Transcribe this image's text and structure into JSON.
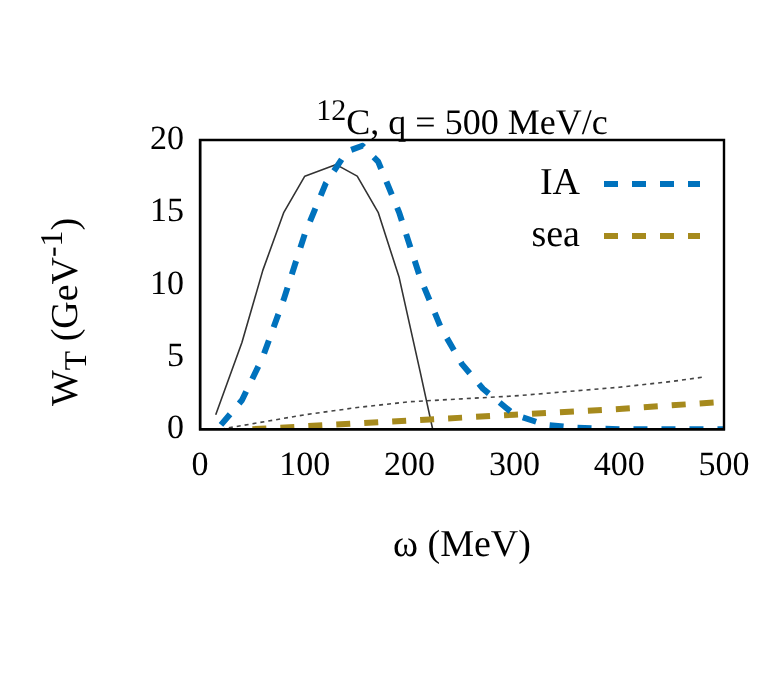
{
  "chart_data": {
    "type": "line",
    "title": "$^{12}$C, q = 500 MeV/c",
    "xlabel": "ω (MeV)",
    "ylabel": "W$_{T}$ (GeV$^{-1}$)",
    "xlim": [
      0,
      500
    ],
    "xticks": [
      0,
      100,
      200,
      300,
      400,
      500
    ],
    "ylim": [
      0,
      20
    ],
    "yticks": [
      0,
      5,
      10,
      15,
      20
    ],
    "grid": false,
    "legend": "top right",
    "marker": "none",
    "series": [
      {
        "name": "IA",
        "color": "#0072bd",
        "line_style": "dashed",
        "x": [
          20,
          40,
          60,
          80,
          100,
          120,
          140,
          155,
          170,
          190,
          210,
          230,
          250,
          270,
          300,
          330,
          360,
          400,
          450,
          500
        ],
        "values": [
          0.3,
          2,
          5,
          9,
          13.5,
          17,
          19.2,
          19.6,
          18.5,
          15,
          10.5,
          7,
          4.5,
          2.8,
          1,
          0.3,
          0.1,
          0,
          0,
          0
        ]
      },
      {
        "name": "sea",
        "color": "#a68a1d",
        "line_style": "dashed",
        "x": [
          50,
          100,
          200,
          300,
          400,
          500
        ],
        "values": [
          0,
          0.2,
          0.6,
          1,
          1.4,
          1.9
        ]
      },
      {
        "color": "#333333",
        "line_style": "solid",
        "x": [
          15,
          40,
          60,
          80,
          100,
          130,
          150,
          170,
          190,
          210,
          222
        ],
        "values": [
          1,
          6,
          11,
          15,
          17.5,
          18.3,
          17.5,
          15,
          10.5,
          4,
          0
        ]
      },
      {
        "color": "#444444",
        "line_style": "dotted",
        "x": [
          20,
          100,
          150,
          200,
          250,
          300,
          350,
          400,
          450,
          480
        ],
        "values": [
          0,
          1,
          1.5,
          1.9,
          2.1,
          2.3,
          2.6,
          2.9,
          3.3,
          3.6
        ]
      }
    ]
  }
}
